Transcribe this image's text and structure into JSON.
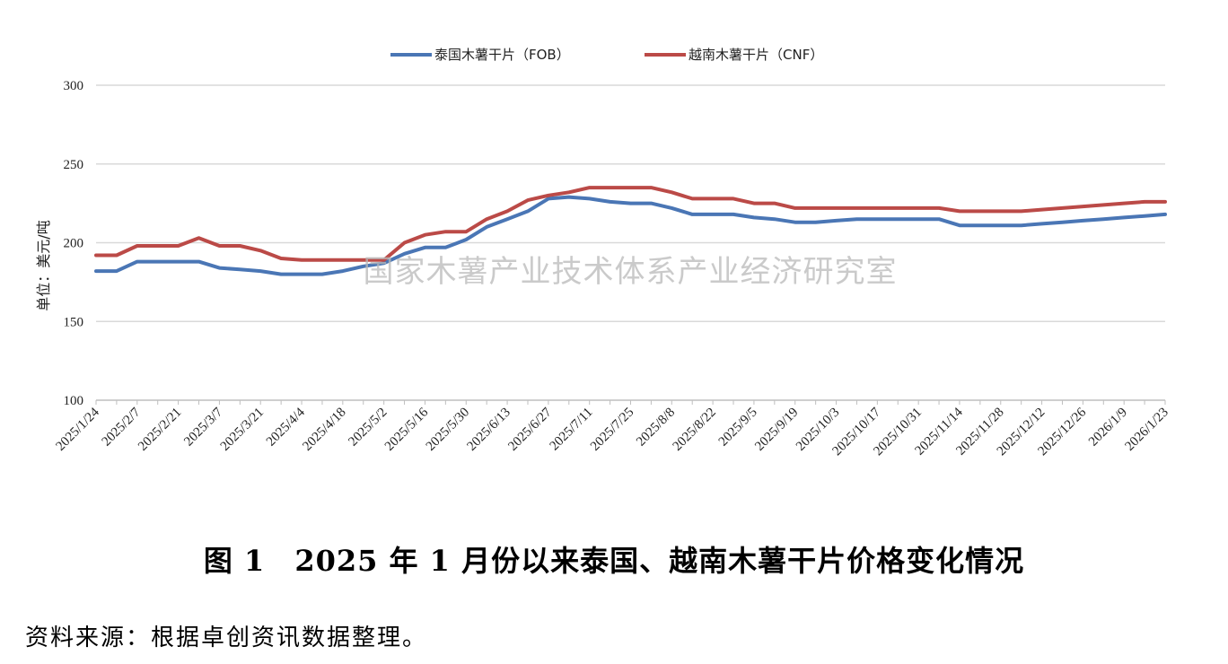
{
  "chart_data": {
    "type": "line",
    "ylabel": "单位：美元/吨",
    "ylim": [
      100,
      300
    ],
    "yticks": [
      100,
      150,
      200,
      250,
      300
    ],
    "grid": true,
    "legend_position": "top-center",
    "watermark": "国家木薯产业技术体系产业经济研究室",
    "x_tick_labels": [
      "2025/1/24",
      "2025/2/7",
      "2025/2/21",
      "2025/3/7",
      "2025/3/21",
      "2025/4/4",
      "2025/4/18",
      "2025/5/2",
      "2025/5/16",
      "2025/5/30",
      "2025/6/13",
      "2025/6/27",
      "2025/7/11",
      "2025/7/25",
      "2025/8/8",
      "2025/8/22",
      "2025/9/5",
      "2025/9/19",
      "2025/10/3",
      "2025/10/17",
      "2025/10/31",
      "2025/11/14",
      "2025/11/28",
      "2025/12/12",
      "2025/12/26",
      "2026/1/9",
      "2026/1/23"
    ],
    "x": [
      "2025/1/24",
      "2025/1/31",
      "2025/2/7",
      "2025/2/14",
      "2025/2/21",
      "2025/2/28",
      "2025/3/7",
      "2025/3/14",
      "2025/3/21",
      "2025/3/28",
      "2025/4/4",
      "2025/4/11",
      "2025/4/18",
      "2025/4/25",
      "2025/5/2",
      "2025/5/9",
      "2025/5/16",
      "2025/5/23",
      "2025/5/30",
      "2025/6/6",
      "2025/6/13",
      "2025/6/20",
      "2025/6/27",
      "2025/7/4",
      "2025/7/11",
      "2025/7/18",
      "2025/7/25",
      "2025/8/1",
      "2025/8/8",
      "2025/8/15",
      "2025/8/22",
      "2025/8/29",
      "2025/9/5",
      "2025/9/12",
      "2025/9/19",
      "2025/9/26",
      "2025/10/3",
      "2025/10/10",
      "2025/10/17",
      "2025/10/24",
      "2025/10/31",
      "2025/11/7",
      "2025/11/14",
      "2025/11/21",
      "2025/11/28",
      "2025/12/5",
      "2025/12/12",
      "2025/12/19",
      "2025/12/26",
      "2026/1/2",
      "2026/1/9",
      "2026/1/16",
      "2026/1/23"
    ],
    "series": [
      {
        "name": "泰国木薯干片（FOB）",
        "color": "#4a76b5",
        "values": [
          182,
          182,
          188,
          188,
          188,
          188,
          184,
          183,
          182,
          180,
          180,
          180,
          182,
          185,
          187,
          193,
          197,
          197,
          202,
          210,
          215,
          220,
          228,
          229,
          228,
          226,
          225,
          225,
          222,
          218,
          218,
          218,
          216,
          215,
          213,
          213,
          214,
          215,
          215,
          215,
          215,
          215,
          211,
          211,
          211,
          211,
          212,
          213,
          214,
          215,
          216,
          217,
          218
        ]
      },
      {
        "name": "越南木薯干片（CNF）",
        "color": "#bb4a47",
        "values": [
          192,
          192,
          198,
          198,
          198,
          203,
          198,
          198,
          195,
          190,
          189,
          189,
          189,
          189,
          189,
          200,
          205,
          207,
          207,
          215,
          220,
          227,
          230,
          232,
          235,
          235,
          235,
          235,
          232,
          228,
          228,
          228,
          225,
          225,
          222,
          222,
          222,
          222,
          222,
          222,
          222,
          222,
          220,
          220,
          220,
          220,
          221,
          222,
          223,
          224,
          225,
          226,
          226
        ]
      }
    ]
  },
  "caption": "图 1　2025 年 1 月份以来泰国、越南木薯干片价格变化情况",
  "source": "资料来源：根据卓创资讯数据整理。"
}
